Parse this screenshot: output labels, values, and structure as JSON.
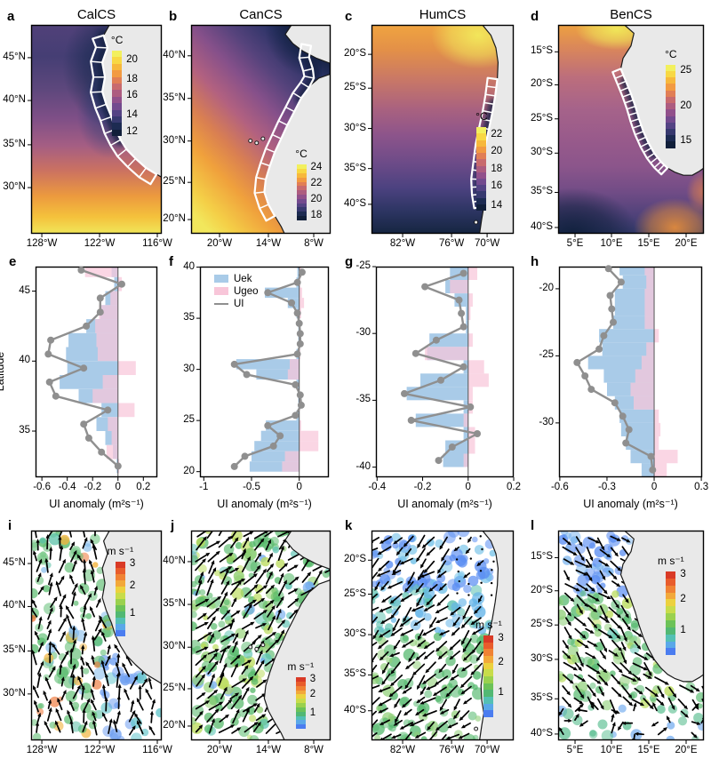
{
  "figure": {
    "background": "#ffffff",
    "description": "Four eastern boundary upwelling systems: SST maps with hatched upwelling region (a-d), upwelling-index anomaly profiles (e-h), wind extreme vector maps (i-l)"
  },
  "colors": {
    "uek_bar": "#a9cbe8",
    "ugeo_bar": "#f8c6d9",
    "ui_line": "#8f8f8f",
    "land": "#e9e9e9",
    "coastline": "#1a1a1a",
    "zero_line": "#555555",
    "sst_colormap": [
      "#f2f05e",
      "#f8d844",
      "#f7b83c",
      "#f29a42",
      "#e17e55",
      "#c86a6e",
      "#ad5c80",
      "#91508b",
      "#734a8e",
      "#544384",
      "#37396f",
      "#1d2b52",
      "#111f3a"
    ],
    "wind_colormap": [
      "#d93a26",
      "#e85c2c",
      "#f08234",
      "#f2a83a",
      "#ecd13e",
      "#c8dc4a",
      "#9ad14e",
      "#6cc258",
      "#52b873",
      "#54c0b4",
      "#5aa8e8",
      "#4b7df0"
    ]
  },
  "chart_data": [
    {
      "letter": "a",
      "title": "CalCS",
      "type": "heatmap",
      "kind": "sst_map",
      "lat_tick_labels": [
        "45°N",
        "40°N",
        "35°N",
        "30°N"
      ],
      "lon_tick_labels": [
        "128°W",
        "122°W",
        "116°W"
      ],
      "colorbar": {
        "label": "°C",
        "tick_labels": [
          "20",
          "18",
          "16",
          "14",
          "12"
        ],
        "value_range": [
          11,
          21
        ]
      },
      "annotation": "white hatched coastal upwelling band"
    },
    {
      "letter": "b",
      "title": "CanCS",
      "type": "heatmap",
      "kind": "sst_map",
      "lat_tick_labels": [
        "40°N",
        "35°N",
        "30°N",
        "25°N",
        "20°N"
      ],
      "lon_tick_labels": [
        "20°W",
        "14°W",
        "8°W"
      ],
      "colorbar": {
        "label": "°C",
        "tick_labels": [
          "24",
          "22",
          "20",
          "18"
        ],
        "value_range": [
          17,
          25
        ]
      },
      "annotation": "white hatched coastal upwelling band"
    },
    {
      "letter": "c",
      "title": "HumCS",
      "type": "heatmap",
      "kind": "sst_map",
      "lat_tick_labels": [
        "20°S",
        "25°S",
        "30°S",
        "35°S",
        "40°S"
      ],
      "lon_tick_labels": [
        "82°W",
        "76°W",
        "70°W"
      ],
      "colorbar": {
        "label": "°C",
        "tick_labels": [
          "22",
          "20",
          "18",
          "16",
          "14"
        ],
        "value_range": [
          13,
          23
        ]
      },
      "annotation": "white hatched coastal upwelling band"
    },
    {
      "letter": "d",
      "title": "BenCS",
      "type": "heatmap",
      "kind": "sst_map",
      "lat_tick_labels": [
        "15°S",
        "20°S",
        "25°S",
        "30°S",
        "35°S",
        "40°S"
      ],
      "lon_tick_labels": [
        "5°E",
        "10°E",
        "15°E",
        "20°E"
      ],
      "colorbar": {
        "label": "°C",
        "tick_labels": [
          "25",
          "20",
          "15"
        ],
        "value_range": [
          13,
          27
        ]
      },
      "annotation": "white hatched coastal upwelling band"
    },
    {
      "letter": "e",
      "type": "bar",
      "orientation": "horizontal",
      "ylabel": "Latitude",
      "xlabel": "UI anomaly (m²s⁻¹)",
      "xlim": [
        -0.65,
        0.31
      ],
      "ylim": [
        31.7,
        46.75
      ],
      "xtick_values": [
        -0.6,
        -0.4,
        -0.2,
        0,
        0.2
      ],
      "xtick_labels": [
        "-0.6",
        "-0.4",
        "-0.2",
        "0",
        "0.2"
      ],
      "ytick_values": [
        45,
        40,
        35
      ],
      "ytick_labels": [
        "45",
        "40",
        "35"
      ],
      "latitudes": [
        46.5,
        45.5,
        44.5,
        43.5,
        42.5,
        41.5,
        40.5,
        39.5,
        38.5,
        37.5,
        36.5,
        35.5,
        34.5,
        33.5,
        32.5
      ],
      "legend": false,
      "series": [
        {
          "name": "Uek",
          "values": [
            -0.05,
            -0.03,
            -0.1,
            -0.14,
            -0.25,
            -0.39,
            -0.41,
            -0.4,
            -0.46,
            -0.31,
            -0.13,
            -0.17,
            -0.1,
            -0.04,
            -0.01
          ]
        },
        {
          "name": "Ugeo",
          "values": [
            -0.26,
            0.03,
            -0.06,
            -0.15,
            -0.18,
            -0.17,
            -0.16,
            0.14,
            -0.12,
            -0.2,
            0.13,
            -0.08,
            -0.05,
            -0.09,
            0.01
          ]
        },
        {
          "name": "UI",
          "values": [
            -0.29,
            0.03,
            -0.14,
            -0.14,
            -0.25,
            -0.53,
            -0.55,
            -0.27,
            -0.54,
            -0.49,
            -0.08,
            -0.27,
            -0.23,
            -0.13,
            0.0
          ]
        }
      ]
    },
    {
      "letter": "f",
      "type": "bar",
      "orientation": "horizontal",
      "ylabel": "",
      "xlabel": "UI anomaly (m²s⁻¹)",
      "xlim": [
        -1.04,
        0.31
      ],
      "ylim": [
        19.45,
        40.05
      ],
      "xtick_values": [
        -1,
        -0.5,
        0
      ],
      "xtick_labels": [
        "-1",
        "-0.5",
        "0"
      ],
      "ytick_values": [
        40,
        35,
        30,
        25,
        20
      ],
      "ytick_labels": [
        "40",
        "35",
        "30",
        "25",
        "20"
      ],
      "latitudes": [
        39.5,
        38.5,
        37.5,
        36.5,
        35.5,
        34.5,
        33.5,
        32.5,
        31.5,
        30.5,
        29.5,
        28.5,
        27.5,
        26.5,
        25.5,
        24.5,
        23.5,
        22.5,
        21.5,
        20.5
      ],
      "legend": true,
      "series": [
        {
          "name": "Uek",
          "values": [
            -0.02,
            -0.03,
            -0.36,
            -0.12,
            -0.03,
            -0.01,
            -0.01,
            -0.01,
            -0.03,
            -0.66,
            -0.45,
            -0.03,
            -0.01,
            -0.01,
            -0.03,
            -0.35,
            -0.4,
            -0.47,
            -0.5,
            -0.52
          ]
        },
        {
          "name": "Ugeo",
          "values": [
            0.02,
            0.01,
            0.03,
            0.05,
            0.02,
            0.0,
            0.0,
            0.0,
            0.01,
            -0.1,
            -0.12,
            0.0,
            0.0,
            0.01,
            0.0,
            0.02,
            0.2,
            0.2,
            -0.15,
            -0.18
          ]
        },
        {
          "name": "UI",
          "values": [
            0.03,
            -0.02,
            -0.33,
            -0.08,
            -0.02,
            0.0,
            0.01,
            0.01,
            -0.02,
            -0.68,
            -0.55,
            -0.04,
            0.01,
            0.02,
            -0.04,
            -0.33,
            -0.2,
            -0.27,
            -0.57,
            -0.68
          ]
        }
      ]
    },
    {
      "letter": "g",
      "type": "bar",
      "orientation": "horizontal",
      "ylabel": "",
      "xlabel": "UI anomaly (m²s⁻¹)",
      "xlim": [
        -0.405,
        0.2
      ],
      "ylim": [
        -40.76,
        -25.0
      ],
      "xtick_values": [
        -0.4,
        -0.2,
        0,
        0.2
      ],
      "xtick_labels": [
        "-0.4",
        "-0.2",
        "0",
        "0.2"
      ],
      "ytick_values": [
        -25,
        -30,
        -35,
        -40
      ],
      "ytick_labels": [
        "-25",
        "-30",
        "-35",
        "-40"
      ],
      "latitudes": [
        -25.5,
        -26.5,
        -27.5,
        -28.5,
        -29.5,
        -30.5,
        -31.5,
        -32.5,
        -33.5,
        -34.5,
        -35.5,
        -36.5,
        -37.5,
        -38.5,
        -39.5
      ],
      "legend": false,
      "series": [
        {
          "name": "Uek",
          "values": [
            -0.08,
            -0.1,
            -0.06,
            -0.01,
            -0.01,
            -0.17,
            -0.18,
            -0.02,
            -0.21,
            -0.27,
            -0.02,
            -0.23,
            -0.02,
            -0.1,
            -0.11
          ]
        },
        {
          "name": "Ugeo",
          "values": [
            0.04,
            -0.08,
            0.02,
            0.01,
            0.0,
            0.02,
            -0.19,
            0.07,
            0.09,
            0.02,
            0.02,
            -0.02,
            0.03,
            0.03,
            -0.02
          ]
        },
        {
          "name": "UI",
          "values": [
            -0.02,
            -0.19,
            -0.04,
            -0.03,
            -0.02,
            -0.14,
            -0.23,
            -0.02,
            -0.12,
            -0.28,
            0.01,
            -0.25,
            0.04,
            -0.07,
            -0.13
          ]
        }
      ]
    },
    {
      "letter": "h",
      "type": "bar",
      "orientation": "horizontal",
      "ylabel": "",
      "xlabel": "UI anomaly (m²s⁻¹)",
      "xlim": [
        -0.605,
        0.305
      ],
      "ylim": [
        -34.05,
        -18.35
      ],
      "xtick_values": [
        -0.6,
        -0.3,
        0,
        0.3
      ],
      "xtick_labels": [
        "-0.6",
        "-0.3",
        "0",
        "0.3"
      ],
      "ytick_values": [
        -20,
        -25,
        -30
      ],
      "ytick_labels": [
        "-20",
        "-25",
        "-30"
      ],
      "latitudes": [
        -18.5,
        -19.5,
        -20.5,
        -21.5,
        -22.5,
        -23.5,
        -24.5,
        -25.5,
        -26.5,
        -27.5,
        -28.5,
        -29.5,
        -30.5,
        -31.5,
        -32.5,
        -33.5
      ],
      "legend": false,
      "series": [
        {
          "name": "Uek",
          "values": [
            -0.22,
            -0.2,
            -0.25,
            -0.25,
            -0.26,
            -0.35,
            -0.33,
            -0.42,
            -0.32,
            -0.3,
            -0.25,
            -0.22,
            -0.21,
            -0.18,
            -0.15,
            -0.08
          ]
        },
        {
          "name": "Ugeo",
          "values": [
            -0.06,
            -0.05,
            -0.06,
            -0.06,
            -0.06,
            0.03,
            -0.05,
            -0.08,
            -0.12,
            -0.15,
            -0.13,
            0.03,
            0.04,
            0.03,
            0.15,
            0.08
          ]
        },
        {
          "name": "UI",
          "values": [
            -0.29,
            -0.21,
            -0.28,
            -0.27,
            -0.26,
            -0.32,
            -0.35,
            -0.49,
            -0.44,
            -0.4,
            -0.25,
            -0.2,
            -0.16,
            -0.18,
            -0.02,
            -0.01
          ]
        }
      ]
    },
    {
      "letter": "i",
      "type": "heatmap",
      "kind": "wind_vector_map",
      "lat_tick_labels": [
        "45°N",
        "40°N",
        "35°N",
        "30°N"
      ],
      "lon_tick_labels": [
        "128°W",
        "122°W",
        "116°W"
      ],
      "colorbar": {
        "label": "m s⁻¹",
        "tick_labels": [
          "3",
          "2",
          "1"
        ],
        "value_range": [
          0.2,
          3.2
        ]
      }
    },
    {
      "letter": "j",
      "type": "heatmap",
      "kind": "wind_vector_map",
      "lat_tick_labels": [
        "40°N",
        "35°N",
        "30°N",
        "25°N",
        "20°N"
      ],
      "lon_tick_labels": [
        "20°W",
        "14°W",
        "8°W"
      ],
      "colorbar": {
        "label": "m s⁻¹",
        "tick_labels": [
          "3",
          "2",
          "1"
        ],
        "value_range": [
          0.2,
          3.2
        ]
      }
    },
    {
      "letter": "k",
      "type": "heatmap",
      "kind": "wind_vector_map",
      "lat_tick_labels": [
        "20°S",
        "25°S",
        "30°S",
        "35°S",
        "40°S"
      ],
      "lon_tick_labels": [
        "82°W",
        "76°W",
        "70°W"
      ],
      "colorbar": {
        "label": "m s⁻¹",
        "tick_labels": [
          "3",
          "2",
          "1"
        ],
        "value_range": [
          0.2,
          3.2
        ]
      }
    },
    {
      "letter": "l",
      "type": "heatmap",
      "kind": "wind_vector_map",
      "lat_tick_labels": [
        "15°S",
        "20°S",
        "25°S",
        "30°S",
        "35°S",
        "40°S"
      ],
      "lon_tick_labels": [
        "5°E",
        "10°E",
        "15°E",
        "20°E"
      ],
      "colorbar": {
        "label": "m s⁻¹",
        "tick_labels": [
          "3",
          "2",
          "1"
        ],
        "value_range": [
          0.2,
          3.2
        ]
      }
    }
  ]
}
